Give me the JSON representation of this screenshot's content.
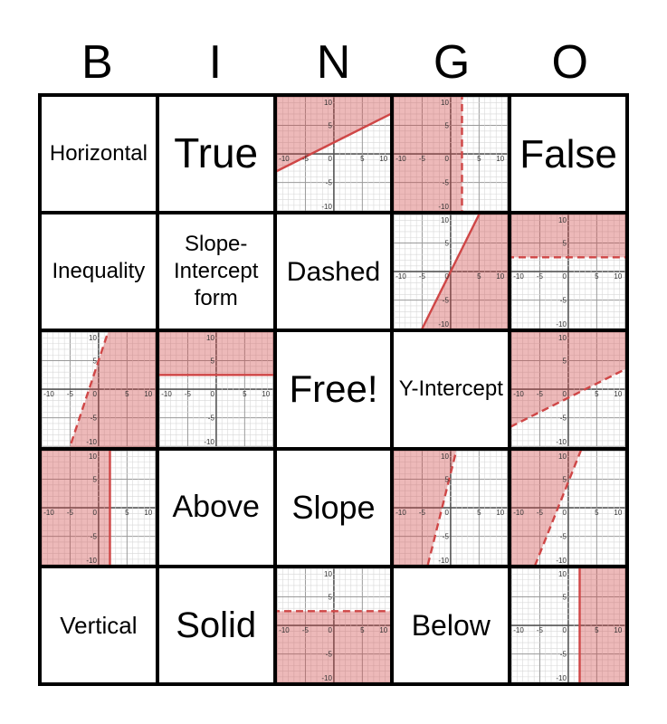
{
  "title": {
    "letters": [
      "B",
      "I",
      "N",
      "G",
      "O"
    ]
  },
  "colors": {
    "line": "#cf4646",
    "shade": "rgba(207,70,70,0.38)",
    "grid_minor": "#d8d8d8",
    "grid_major": "#9a9a9a",
    "axis": "#555555",
    "tick_label": "#333333",
    "cell_border": "#000000"
  },
  "axis": {
    "min": -10,
    "max": 10,
    "x_ticks": [
      -10,
      -5,
      0,
      5,
      10
    ],
    "y_ticks": [
      10,
      5,
      -5,
      -10
    ]
  },
  "cells": [
    [
      {
        "kind": "text",
        "label": "Horizontal",
        "size": 24
      },
      {
        "kind": "text",
        "label": "True",
        "size": 46
      },
      {
        "kind": "graph",
        "equation": "y = 0.5x + 2, solid, shaded above",
        "slope": 0.5,
        "intercept": 2,
        "style": "solid",
        "shade": "above"
      },
      {
        "kind": "graph",
        "equation": "x = 2, dashed, shaded left",
        "orientation": "vertical",
        "x": 2,
        "style": "dashed",
        "shade": "left"
      },
      {
        "kind": "text",
        "label": "False",
        "size": 44
      }
    ],
    [
      {
        "kind": "text",
        "label": "Inequality",
        "size": 24
      },
      {
        "kind": "text",
        "label": "Slope-Intercept form",
        "size": 24
      },
      {
        "kind": "text",
        "label": "Dashed",
        "size": 30
      },
      {
        "kind": "graph",
        "equation": "y = 2x, solid, shaded below",
        "slope": 2,
        "intercept": 0,
        "style": "solid",
        "shade": "below"
      },
      {
        "kind": "graph",
        "equation": "y = 2.5, dashed, shaded above",
        "orientation": "horizontal",
        "y": 2.5,
        "style": "dashed",
        "shade": "above"
      }
    ],
    [
      {
        "kind": "graph",
        "equation": "y = 3x + 5, dashed, shaded below",
        "slope": 3,
        "intercept": 5,
        "style": "dashed",
        "shade": "below"
      },
      {
        "kind": "graph",
        "equation": "y = 2.5, solid, shaded above",
        "orientation": "horizontal",
        "y": 2.5,
        "style": "solid",
        "shade": "above"
      },
      {
        "kind": "text",
        "label": "Free!",
        "size": 42
      },
      {
        "kind": "text",
        "label": "Y-Intercept",
        "size": 24
      },
      {
        "kind": "graph",
        "equation": "y = 0.5x - 1.5, dashed, shaded above",
        "slope": 0.5,
        "intercept": -1.5,
        "style": "dashed",
        "shade": "above"
      }
    ],
    [
      {
        "kind": "graph",
        "equation": "x = 2, solid, shaded left",
        "orientation": "vertical",
        "x": 2,
        "style": "solid",
        "shade": "left"
      },
      {
        "kind": "text",
        "label": "Above",
        "size": 34
      },
      {
        "kind": "text",
        "label": "Slope",
        "size": 36
      },
      {
        "kind": "graph",
        "equation": "y = 4x + 6, dashed, shaded above",
        "slope": 4,
        "intercept": 6,
        "style": "dashed",
        "shade": "above"
      },
      {
        "kind": "graph",
        "equation": "y = 2.5x + 4.5, dashed, shaded above",
        "slope": 2.5,
        "intercept": 4.5,
        "style": "dashed",
        "shade": "above"
      }
    ],
    [
      {
        "kind": "text",
        "label": "Vertical",
        "size": 26
      },
      {
        "kind": "text",
        "label": "Solid",
        "size": 40
      },
      {
        "kind": "graph",
        "equation": "y = 2.5, dashed, shaded below",
        "orientation": "horizontal",
        "y": 2.5,
        "style": "dashed",
        "shade": "below"
      },
      {
        "kind": "text",
        "label": "Below",
        "size": 32
      },
      {
        "kind": "graph",
        "equation": "x = 2, solid, shaded right",
        "orientation": "vertical",
        "x": 2,
        "style": "solid",
        "shade": "right"
      }
    ]
  ]
}
